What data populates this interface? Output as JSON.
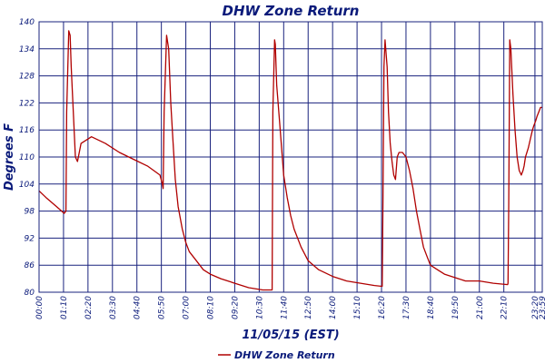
{
  "chart_data": {
    "type": "line",
    "title": "DHW Zone Return",
    "xlabel": "11/05/15 (EST)",
    "ylabel": "Degrees F",
    "ylim": [
      80,
      140
    ],
    "yticks": [
      80,
      86,
      92,
      98,
      104,
      110,
      116,
      122,
      128,
      134,
      140
    ],
    "xlim": [
      0,
      1440
    ],
    "xticks": [
      {
        "minute": 0,
        "label": "00:00"
      },
      {
        "minute": 70,
        "label": "01:10"
      },
      {
        "minute": 140,
        "label": "02:20"
      },
      {
        "minute": 210,
        "label": "03:30"
      },
      {
        "minute": 280,
        "label": "04:40"
      },
      {
        "minute": 350,
        "label": "05:50"
      },
      {
        "minute": 420,
        "label": "07:00"
      },
      {
        "minute": 490,
        "label": "08:10"
      },
      {
        "minute": 560,
        "label": "09:20"
      },
      {
        "minute": 630,
        "label": "10:30"
      },
      {
        "minute": 700,
        "label": "11:40"
      },
      {
        "minute": 770,
        "label": "12:50"
      },
      {
        "minute": 840,
        "label": "14:00"
      },
      {
        "minute": 910,
        "label": "15:10"
      },
      {
        "minute": 980,
        "label": "16:20"
      },
      {
        "minute": 1050,
        "label": "17:30"
      },
      {
        "minute": 1120,
        "label": "18:40"
      },
      {
        "minute": 1190,
        "label": "19:50"
      },
      {
        "minute": 1260,
        "label": "21:00"
      },
      {
        "minute": 1330,
        "label": "22:10"
      },
      {
        "minute": 1419,
        "label": "23:20"
      },
      {
        "minute": 1440,
        "label": "23:59"
      }
    ],
    "grid": true,
    "legend_position": "bottom-center",
    "series": [
      {
        "name": "DHW Zone Return",
        "color": "#b00000",
        "x": [
          0,
          20,
          50,
          72,
          77,
          79,
          85,
          89,
          92,
          98,
          104,
          110,
          120,
          150,
          190,
          230,
          270,
          310,
          346,
          353,
          355,
          358,
          365,
          371,
          377,
          383,
          390,
          398,
          410,
          420,
          430,
          450,
          470,
          490,
          520,
          560,
          600,
          640,
          667,
          669,
          674,
          676,
          680,
          690,
          700,
          710,
          720,
          730,
          750,
          770,
          800,
          840,
          880,
          920,
          960,
          981,
          982,
          984,
          987,
          990,
          996,
          1000,
          1005,
          1010,
          1015,
          1020,
          1025,
          1030,
          1040,
          1050,
          1060,
          1070,
          1080,
          1090,
          1100,
          1110,
          1120,
          1140,
          1160,
          1180,
          1200,
          1220,
          1260,
          1300,
          1341,
          1342,
          1344,
          1347,
          1350,
          1356,
          1362,
          1368,
          1374,
          1380,
          1385,
          1388,
          1392,
          1400,
          1406,
          1412,
          1416,
          1421,
          1425,
          1430,
          1435,
          1440
        ],
        "y": [
          102.5,
          101,
          99,
          97.5,
          98,
          120,
          138,
          137,
          130,
          120,
          110,
          109,
          113,
          114.5,
          113,
          111,
          109.5,
          108,
          106,
          104,
          103,
          120,
          137,
          134,
          122,
          114,
          105,
          99,
          94,
          91,
          89,
          87,
          85,
          84,
          83,
          82,
          81,
          80.5,
          80.5,
          120,
          136,
          135,
          126,
          116,
          106,
          101,
          97,
          94,
          90,
          87,
          85,
          83.5,
          82.5,
          82,
          81.5,
          81.3,
          81.3,
          100,
          130,
          136,
          130,
          120,
          113,
          109,
          106,
          105,
          110,
          111,
          111,
          110,
          107,
          103,
          98,
          94,
          90,
          88,
          86,
          85,
          84,
          83.5,
          83,
          82.5,
          82.5,
          82,
          81.7,
          82,
          100,
          136,
          134,
          124,
          116,
          110,
          107,
          106,
          107,
          108,
          110,
          112,
          114,
          116,
          117,
          118,
          119,
          120,
          121,
          121
        ]
      }
    ]
  }
}
